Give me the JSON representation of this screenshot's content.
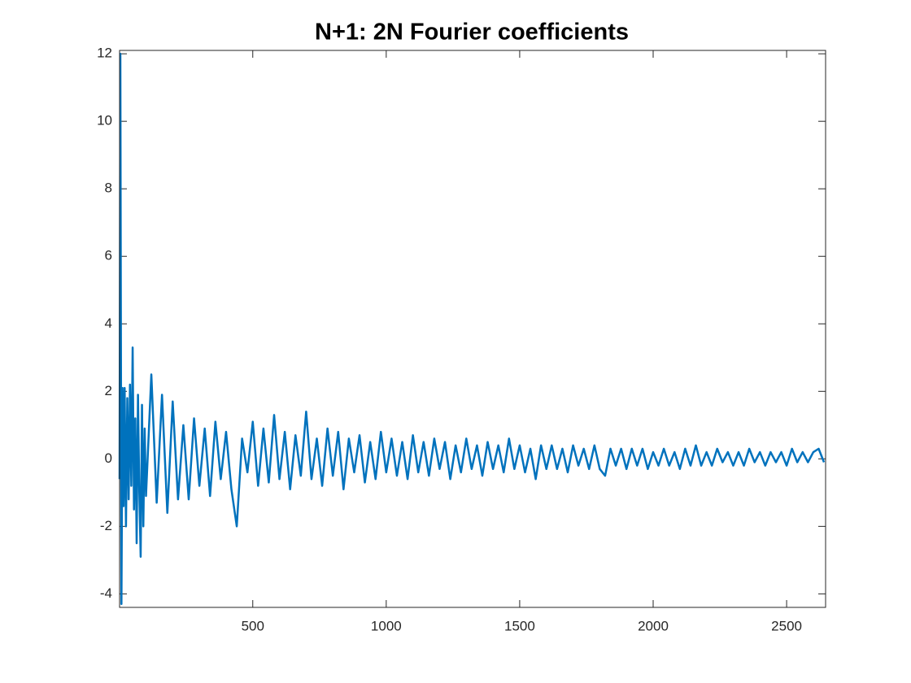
{
  "chart_data": {
    "type": "line",
    "title": "N+1: 2N Fourier coefficients",
    "xlim": [
      1,
      2646
    ],
    "ylim": [
      -4.4,
      12.1
    ],
    "xticks": [
      500,
      1000,
      1500,
      2000,
      2500
    ],
    "yticks": [
      -4,
      -2,
      0,
      2,
      4,
      6,
      8,
      10,
      12
    ],
    "series": [
      {
        "color": "#0072bd",
        "x": [
          1,
          4,
          8,
          12,
          16,
          20,
          25,
          30,
          35,
          40,
          45,
          50,
          55,
          60,
          65,
          70,
          75,
          80,
          85,
          90,
          95,
          100,
          120,
          140,
          160,
          180,
          200,
          220,
          240,
          260,
          280,
          300,
          320,
          340,
          360,
          380,
          400,
          420,
          440,
          460,
          480,
          500,
          520,
          540,
          560,
          580,
          600,
          620,
          640,
          660,
          680,
          700,
          720,
          740,
          760,
          780,
          800,
          820,
          840,
          860,
          880,
          900,
          920,
          940,
          960,
          980,
          1000,
          1020,
          1040,
          1060,
          1080,
          1100,
          1120,
          1140,
          1160,
          1180,
          1200,
          1220,
          1240,
          1260,
          1280,
          1300,
          1320,
          1340,
          1360,
          1380,
          1400,
          1420,
          1440,
          1460,
          1480,
          1500,
          1520,
          1540,
          1560,
          1580,
          1600,
          1620,
          1640,
          1660,
          1680,
          1700,
          1720,
          1740,
          1760,
          1780,
          1800,
          1820,
          1840,
          1860,
          1880,
          1900,
          1920,
          1940,
          1960,
          1980,
          2000,
          2020,
          2040,
          2060,
          2080,
          2100,
          2120,
          2140,
          2160,
          2180,
          2200,
          2220,
          2240,
          2260,
          2280,
          2300,
          2320,
          2340,
          2360,
          2380,
          2400,
          2420,
          2440,
          2460,
          2480,
          2500,
          2520,
          2540,
          2560,
          2580,
          2600,
          2620,
          2640
        ],
        "values": [
          -0.6,
          12,
          -4.3,
          2.1,
          -1.4,
          2.1,
          -2.0,
          1.8,
          -1.2,
          2.2,
          -0.8,
          3.3,
          -1.5,
          1.2,
          -2.5,
          1.9,
          -1.0,
          -2.9,
          1.6,
          -2.0,
          0.9,
          -1.1,
          2.5,
          -1.3,
          1.9,
          -1.6,
          1.7,
          -1.2,
          1.0,
          -1.2,
          1.2,
          -0.8,
          0.9,
          -1.1,
          1.1,
          -0.6,
          0.8,
          -0.9,
          -2.0,
          0.6,
          -0.4,
          1.1,
          -0.8,
          0.9,
          -0.7,
          1.3,
          -0.6,
          0.8,
          -0.9,
          0.7,
          -0.5,
          1.4,
          -0.6,
          0.6,
          -0.8,
          0.9,
          -0.5,
          0.8,
          -0.9,
          0.6,
          -0.4,
          0.7,
          -0.7,
          0.5,
          -0.6,
          0.8,
          -0.4,
          0.6,
          -0.5,
          0.5,
          -0.6,
          0.7,
          -0.4,
          0.5,
          -0.5,
          0.6,
          -0.3,
          0.5,
          -0.6,
          0.4,
          -0.4,
          0.6,
          -0.3,
          0.4,
          -0.5,
          0.5,
          -0.3,
          0.4,
          -0.4,
          0.6,
          -0.3,
          0.4,
          -0.4,
          0.3,
          -0.6,
          0.4,
          -0.3,
          0.4,
          -0.3,
          0.3,
          -0.4,
          0.4,
          -0.2,
          0.3,
          -0.3,
          0.4,
          -0.3,
          -0.5,
          0.3,
          -0.2,
          0.3,
          -0.3,
          0.3,
          -0.2,
          0.3,
          -0.3,
          0.2,
          -0.2,
          0.3,
          -0.2,
          0.2,
          -0.3,
          0.3,
          -0.2,
          0.4,
          -0.2,
          0.2,
          -0.2,
          0.3,
          -0.1,
          0.2,
          -0.2,
          0.2,
          -0.2,
          0.3,
          -0.1,
          0.2,
          -0.2,
          0.2,
          -0.1,
          0.2,
          -0.2,
          0.3,
          -0.1,
          0.2,
          -0.1,
          0.2,
          0.3,
          -0.1
        ]
      }
    ]
  }
}
